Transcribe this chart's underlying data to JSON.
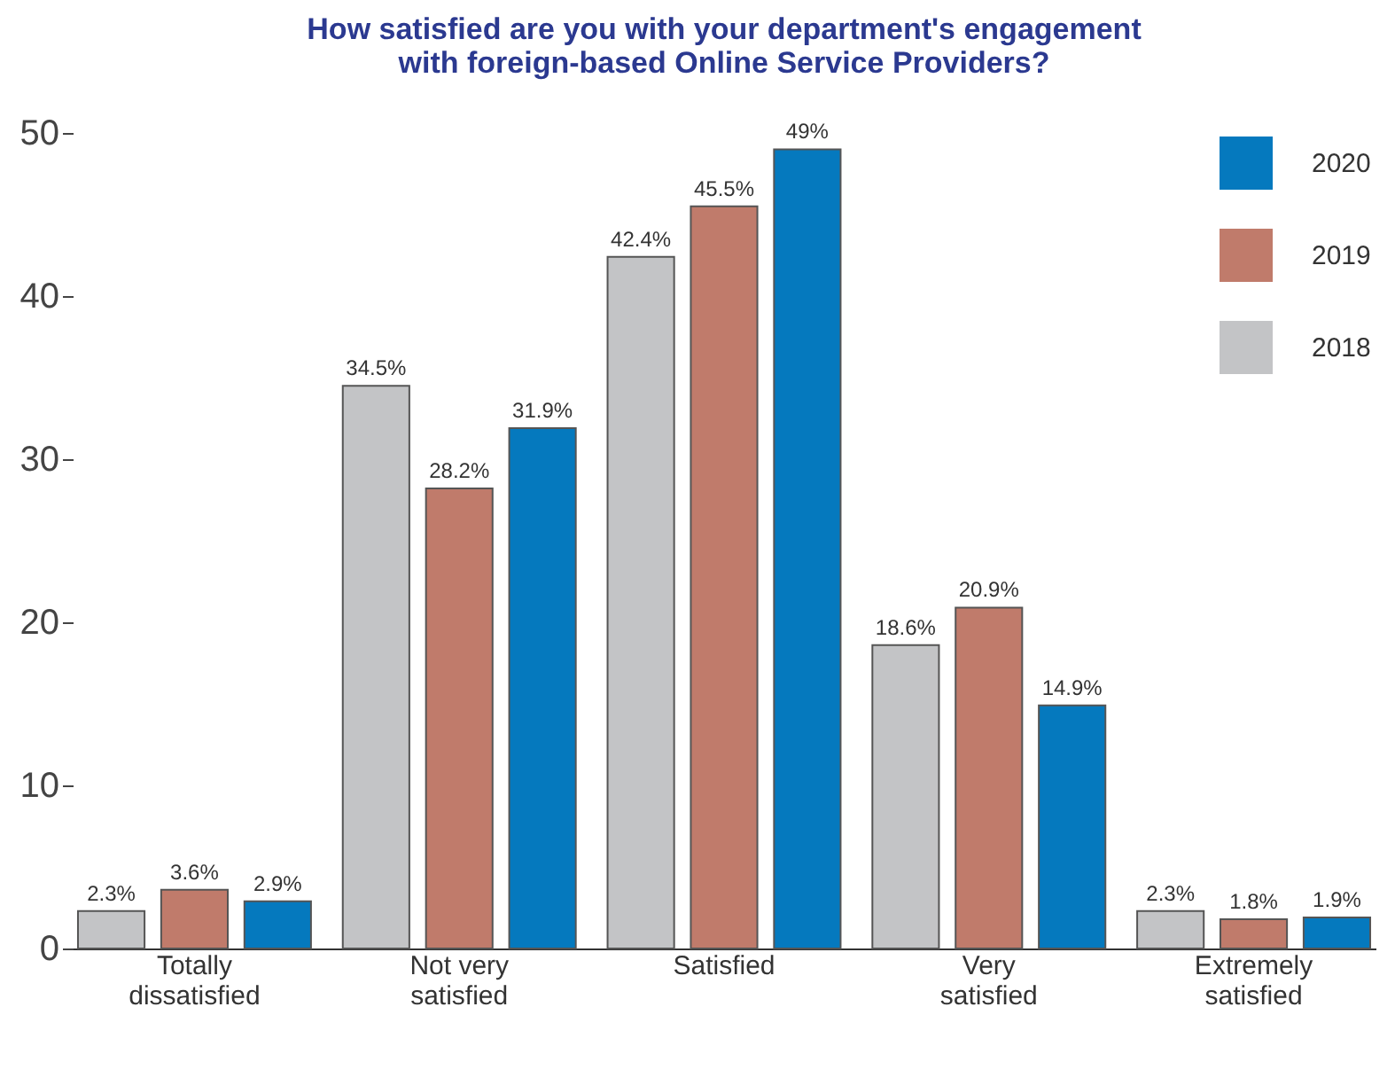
{
  "chart_data": {
    "type": "bar",
    "title": "How satisfied are you with your department's engagement\nwith foreign-based Online Service Providers?",
    "categories": [
      "Totally dissatisfied",
      "Not very satisfied",
      "Satisfied",
      "Very satisfied",
      "Extremely satisfied"
    ],
    "series": [
      {
        "name": "2018",
        "color": "#c3c4c6",
        "values": [
          2.3,
          34.5,
          42.4,
          18.6,
          2.3
        ],
        "value_labels": [
          "2.3%",
          "34.5%",
          "42.4%",
          "18.6%",
          "2.3%"
        ]
      },
      {
        "name": "2019",
        "color": "#c07b6b",
        "values": [
          3.6,
          28.2,
          45.5,
          20.9,
          1.8
        ],
        "value_labels": [
          "3.6%",
          "28.2%",
          "45.5%",
          "20.9%",
          "1.8%"
        ]
      },
      {
        "name": "2020",
        "color": "#0579be",
        "values": [
          2.9,
          31.9,
          49,
          14.9,
          1.9
        ],
        "value_labels": [
          "2.9%",
          "31.9%",
          "49%",
          "14.9%",
          "1.9%"
        ]
      }
    ],
    "ylim": [
      0,
      50
    ],
    "yticks": [
      0,
      10,
      20,
      30,
      40,
      50
    ],
    "grid": false,
    "legend": "top right"
  }
}
